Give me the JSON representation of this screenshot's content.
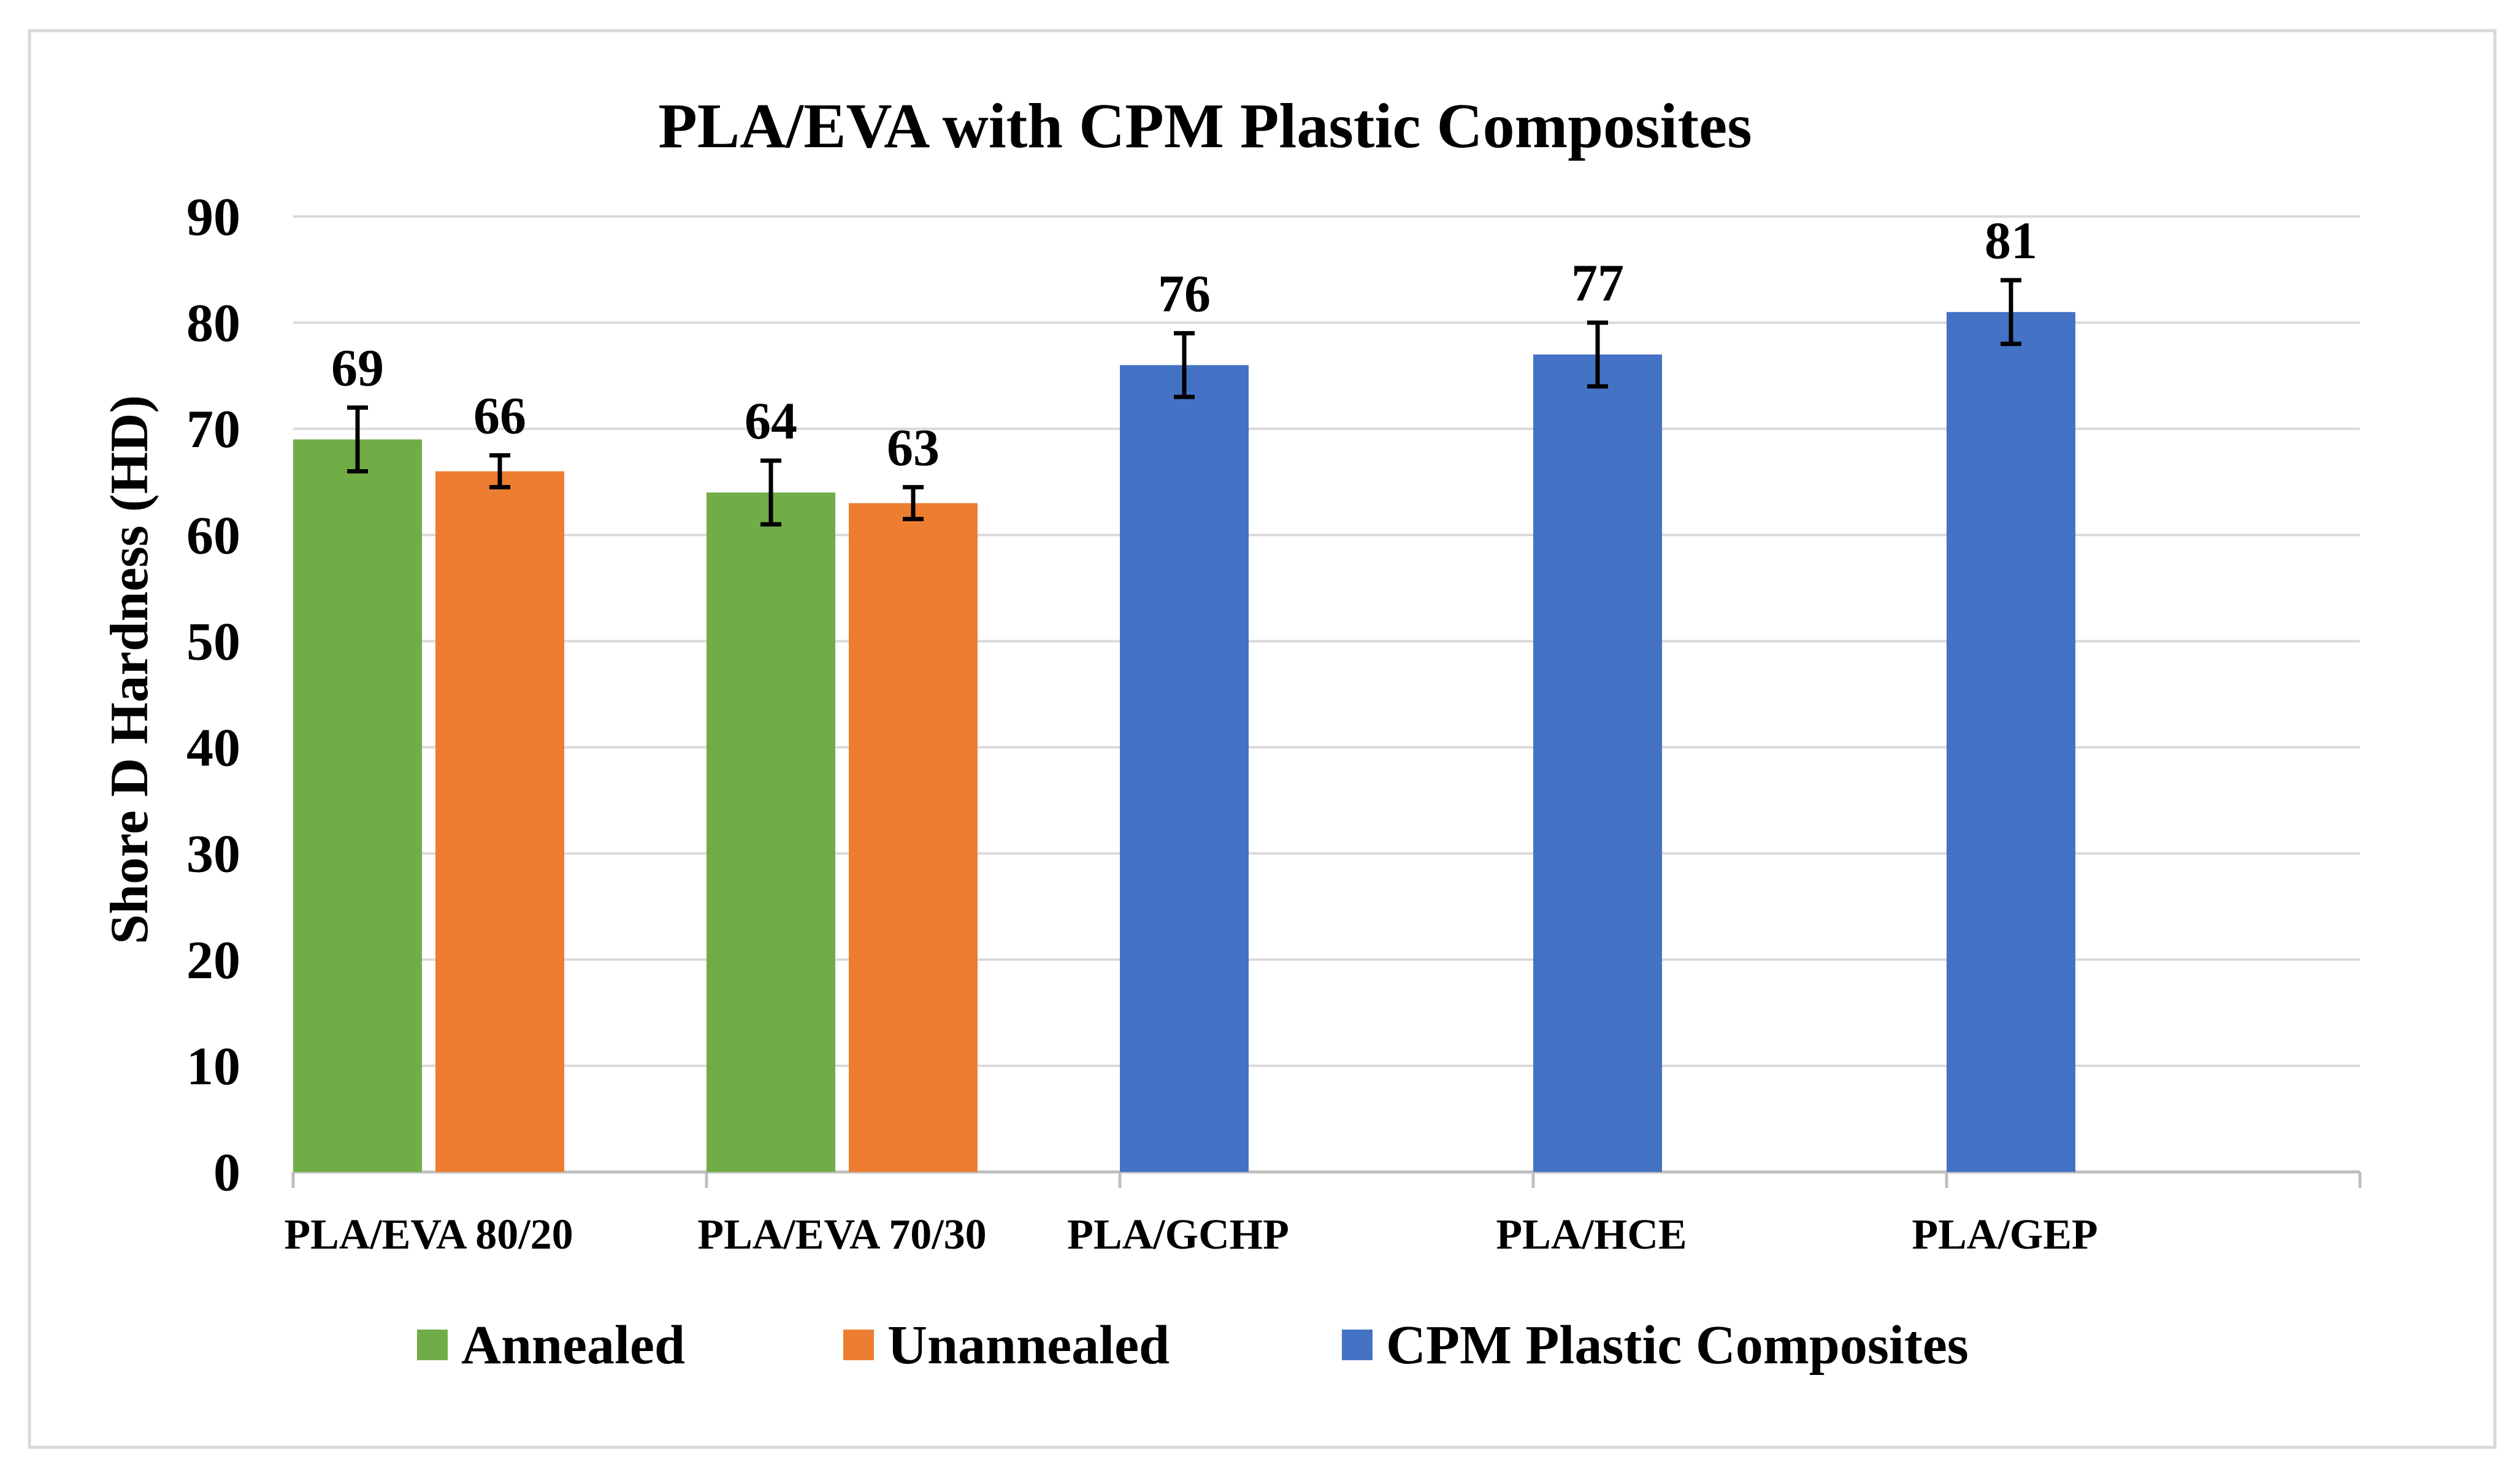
{
  "chart_data": {
    "type": "bar",
    "title": "PLA/EVA with CPM Plastic Composites",
    "xlabel": "",
    "ylabel": "Shore D Hardness (HD)",
    "ylim": [
      0,
      90
    ],
    "yticks": [
      0,
      10,
      20,
      30,
      40,
      50,
      60,
      70,
      80,
      90
    ],
    "grid": true,
    "legend_position": "bottom",
    "categories": [
      "PLA/EVA 80/20",
      "PLA/EVA 70/30",
      "PLA/GCHP",
      "PLA/HCE",
      "PLA/GEP"
    ],
    "series": [
      {
        "name": "Annealed",
        "color": "#70AD47",
        "values": [
          69,
          64,
          null,
          null,
          null
        ],
        "errors": [
          3,
          3,
          null,
          null,
          null
        ]
      },
      {
        "name": "Unannealed",
        "color": "#ED7D31",
        "values": [
          66,
          63,
          null,
          null,
          null
        ],
        "errors": [
          1.5,
          1.5,
          null,
          null,
          null
        ]
      },
      {
        "name": "CPM Plastic Composites",
        "color": "#4472C4",
        "values": [
          null,
          null,
          76,
          77,
          81
        ],
        "errors": [
          null,
          null,
          3,
          3,
          3
        ]
      }
    ],
    "data_labels": [
      "69",
      "66",
      "64",
      "63",
      "76",
      "77",
      "81"
    ]
  }
}
